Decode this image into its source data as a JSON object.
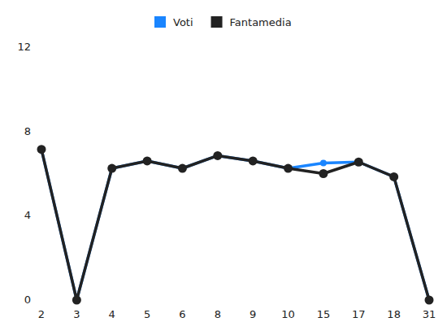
{
  "chart_data": {
    "type": "line",
    "categories": [
      "2",
      "3",
      "4",
      "5",
      "6",
      "8",
      "9",
      "10",
      "15",
      "17",
      "18",
      "31"
    ],
    "series": [
      {
        "name": "Voti",
        "color": "#1a85ff",
        "marker": "circle",
        "values": [
          7.15,
          0,
          6.25,
          6.6,
          6.25,
          6.85,
          6.6,
          6.25,
          6.5,
          6.55,
          5.85,
          0
        ]
      },
      {
        "name": "Fantamedia",
        "color": "#222222",
        "marker": "circle",
        "values": [
          7.15,
          0,
          6.25,
          6.6,
          6.25,
          6.85,
          6.6,
          6.25,
          6.0,
          6.55,
          5.85,
          0
        ]
      }
    ],
    "ylim": [
      0,
      12
    ],
    "yticks": [
      0,
      4,
      8,
      12
    ],
    "grid": false,
    "legend": "top"
  }
}
